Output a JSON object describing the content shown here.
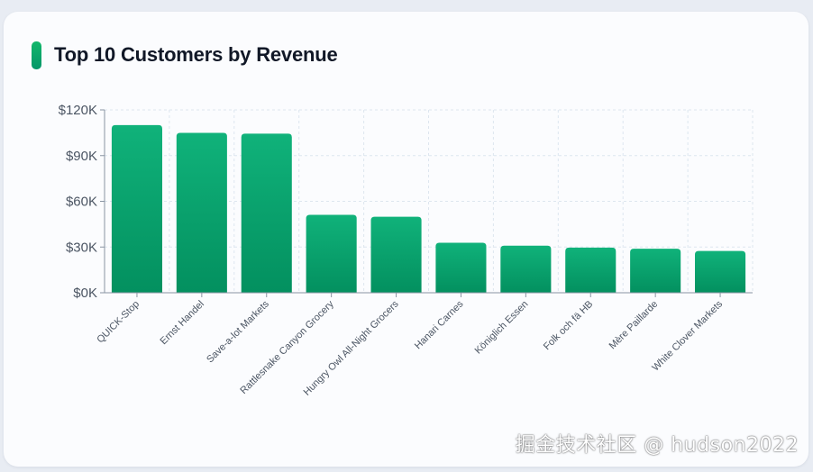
{
  "card": {
    "title": "Top 10 Customers by Revenue"
  },
  "watermark": "掘金技术社区 @ hudson2022",
  "colors": {
    "bar_top": "#10b27a",
    "bar_bottom": "#03905f",
    "accent": "#12b76a",
    "grid": "#dde6ef",
    "axis": "#8a95a3",
    "tick_text": "#4b5563"
  },
  "chart_data": {
    "type": "bar",
    "title": "Top 10 Customers by Revenue",
    "xlabel": "",
    "ylabel": "",
    "ylim": [
      0,
      120000
    ],
    "yticks": [
      0,
      30000,
      60000,
      90000,
      120000
    ],
    "ytick_labels": [
      "$0K",
      "$30K",
      "$60K",
      "$90K",
      "$120K"
    ],
    "grid": true,
    "categories": [
      "QUICK-Stop",
      "Ernst Handel",
      "Save-a-lot Markets",
      "Rattlesnake Canyon Grocery",
      "Hungry Owl All-Night Grocers",
      "Hanari Carnes",
      "Königlich Essen",
      "Folk och fä HB",
      "Mère Paillarde",
      "White Clover Markets"
    ],
    "values": [
      110000,
      104900,
      104400,
      51100,
      49900,
      32800,
      30900,
      29600,
      28900,
      27400
    ]
  }
}
